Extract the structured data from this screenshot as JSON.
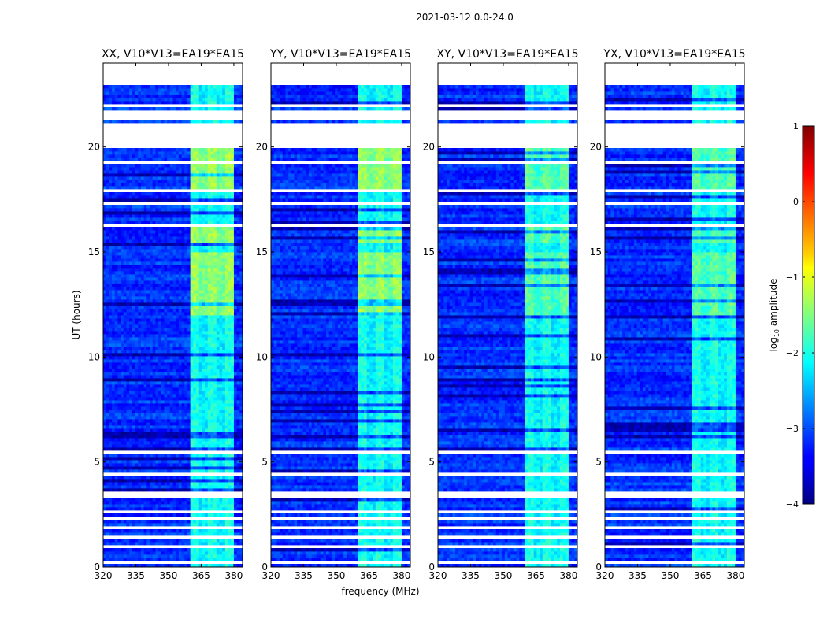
{
  "chart_data": {
    "type": "heatmap",
    "suptitle": "2021-03-12 0.0-24.0",
    "xlabel": "frequency (MHz)",
    "ylabel": "UT (hours)",
    "xlim": [
      320,
      384
    ],
    "ylim": [
      0,
      24
    ],
    "xticks": [
      320,
      335,
      350,
      365,
      380
    ],
    "yticks": [
      0,
      5,
      10,
      15,
      20
    ],
    "colorbar": {
      "label": "log10 amplitude",
      "label_base": "log",
      "label_sub": "10",
      "label_rest": " amplitude",
      "range": [
        -4,
        1
      ],
      "ticks": [
        "1",
        "0",
        "−1",
        "−2",
        "−3",
        "−4"
      ],
      "colormap": "jet"
    },
    "baseline_label": "V10*V13=EA19*EA15",
    "panels": [
      {
        "title": "XX, V10*V13=EA19*EA15",
        "pol": "XX"
      },
      {
        "title": "YY, V10*V13=EA19*EA15",
        "pol": "YY"
      },
      {
        "title": "XY, V10*V13=EA19*EA15",
        "pol": "XY"
      },
      {
        "title": "YX, V10*V13=EA19*EA15",
        "pol": "YX"
      }
    ],
    "rfi_band_mhz": [
      360,
      380
    ],
    "data_gaps_hours": [
      [
        0.2,
        0.25
      ],
      [
        0.95,
        1.0
      ],
      [
        1.35,
        1.5
      ],
      [
        1.85,
        1.9
      ],
      [
        2.25,
        2.35
      ],
      [
        2.55,
        2.65
      ],
      [
        3.3,
        3.65
      ],
      [
        3.7,
        3.75
      ],
      [
        4.4,
        4.45
      ],
      [
        5.45,
        5.6
      ],
      [
        7.75,
        7.8
      ],
      [
        10.5,
        10.55
      ],
      [
        11.25,
        11.3
      ],
      [
        12.6,
        12.65
      ],
      [
        13.8,
        13.85
      ],
      [
        16.15,
        16.3
      ],
      [
        17.25,
        17.45
      ],
      [
        17.9,
        17.95
      ],
      [
        18.55,
        18.6
      ],
      [
        19.25,
        19.3
      ],
      [
        20.0,
        21.2
      ],
      [
        21.3,
        21.8
      ],
      [
        21.95,
        22.1
      ],
      [
        22.45,
        22.55
      ],
      [
        23.0,
        24.0
      ]
    ]
  }
}
